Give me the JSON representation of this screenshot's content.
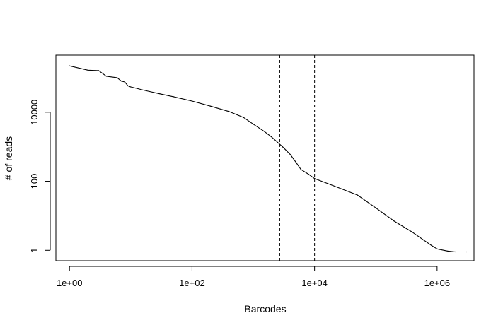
{
  "chart_data": {
    "type": "line",
    "title": "",
    "xlabel": "Barcodes",
    "ylabel": "# of reads",
    "x_scale": "log10",
    "y_scale": "log10",
    "xlim": [
      0.6,
      4000000
    ],
    "ylim": [
      0.5,
      450000
    ],
    "grid": false,
    "legend": "none",
    "x_ticks": [
      {
        "value": 1,
        "label": "1e+00"
      },
      {
        "value": 100,
        "label": "1e+02"
      },
      {
        "value": 10000,
        "label": "1e+04"
      },
      {
        "value": 1000000,
        "label": "1e+06"
      }
    ],
    "y_ticks": [
      {
        "value": 1,
        "label": "1"
      },
      {
        "value": 100,
        "label": "100"
      },
      {
        "value": 10000,
        "label": "10000"
      }
    ],
    "vlines": [
      2700,
      10000
    ],
    "series": [
      {
        "color": "#000000",
        "line_style": "solid",
        "x": [
          1,
          2,
          3,
          4,
          6,
          7,
          8,
          9,
          10,
          12,
          15,
          20,
          30,
          50,
          100,
          200,
          400,
          700,
          1000,
          1500,
          2000,
          3000,
          4000,
          5000,
          6000,
          8000,
          10000,
          20000,
          50000,
          100000,
          200000,
          400000,
          600000,
          800000,
          1000000,
          1500000,
          2000000,
          3000000
        ],
        "y": [
          220000,
          165000,
          160000,
          110000,
          100000,
          80000,
          75000,
          58000,
          54000,
          50000,
          45000,
          40000,
          34000,
          28000,
          21000,
          15000,
          10500,
          7000,
          4500,
          2800,
          1900,
          1000,
          600,
          350,
          220,
          160,
          120,
          75,
          40,
          17,
          7,
          3.3,
          2.0,
          1.4,
          1.1,
          0.95,
          0.9,
          0.9
        ]
      }
    ]
  }
}
